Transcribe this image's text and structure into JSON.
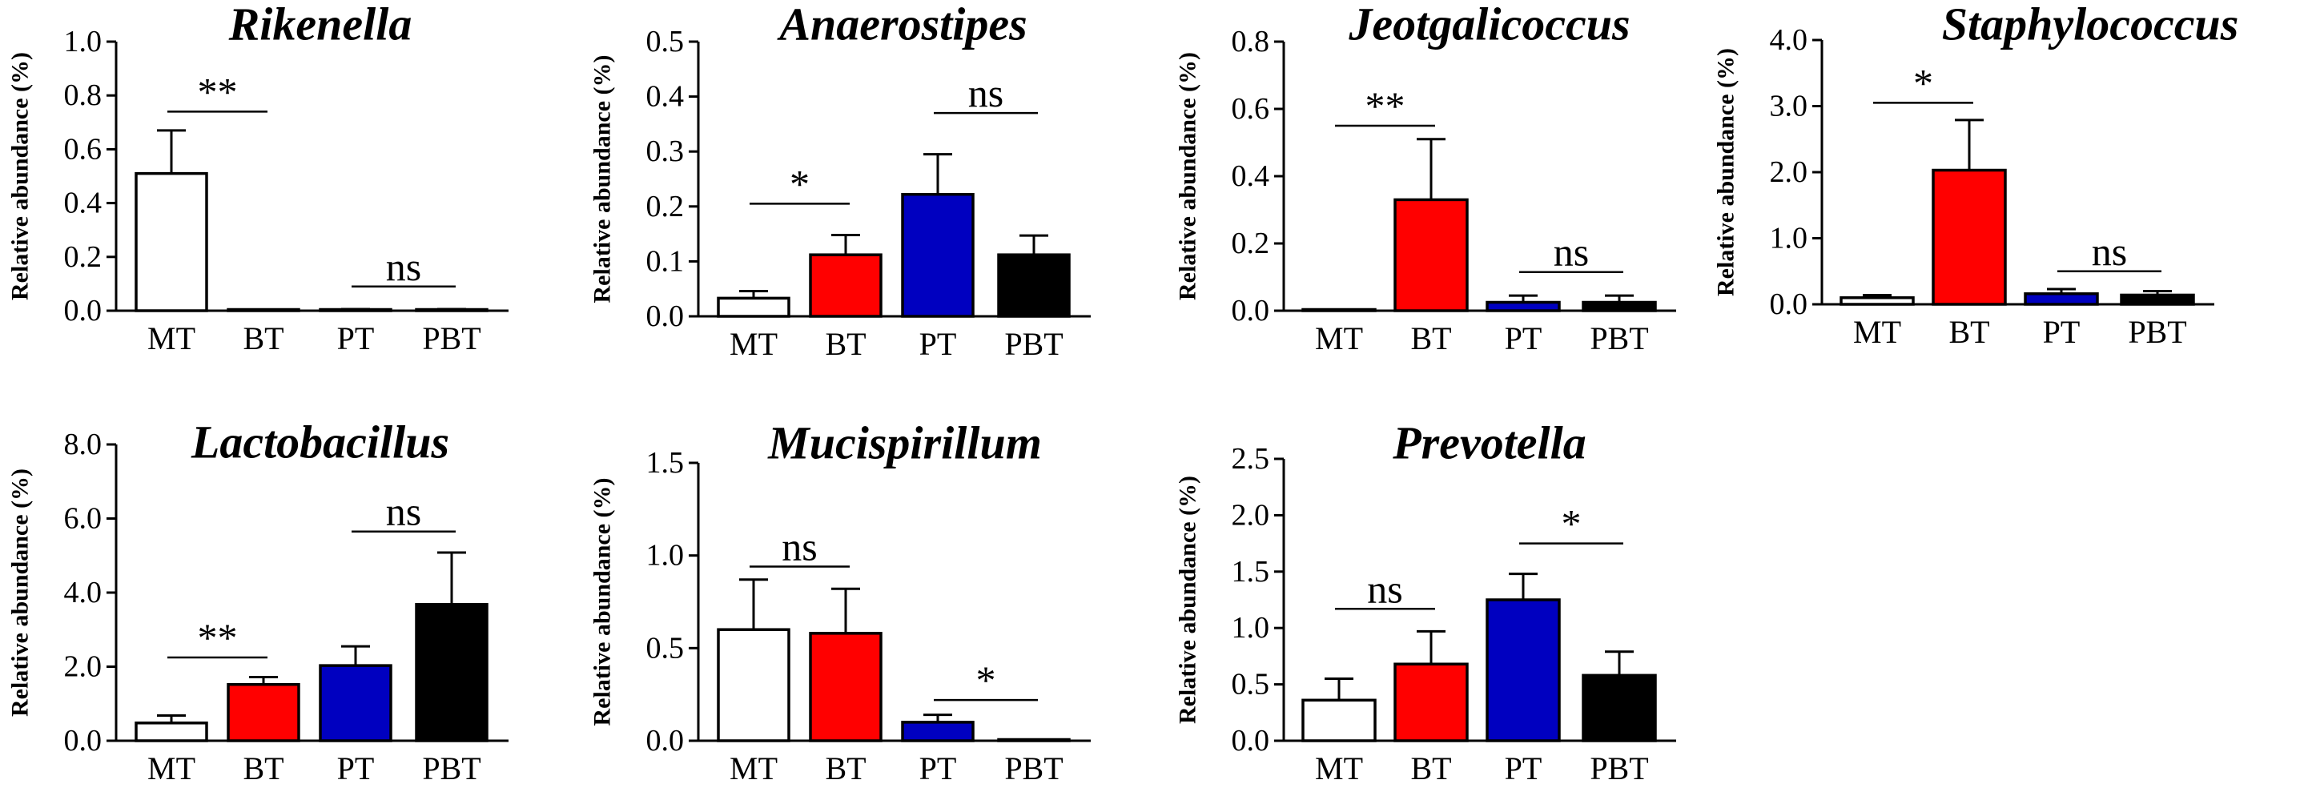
{
  "chart_data": [
    {
      "type": "bar",
      "title": "Rikenella",
      "ylabel": "Relative abundance (%)",
      "categories": [
        "MT",
        "BT",
        "PT",
        "PBT"
      ],
      "values": [
        0.51,
        0.0,
        0.004,
        0.004
      ],
      "errors": [
        0.16,
        0.0,
        0.002,
        0.002
      ],
      "colors": [
        "#ffffff",
        "#ff0000",
        "#0000c0",
        "#000000"
      ],
      "ylim": [
        0,
        1.0
      ],
      "yticks": [
        "0.0",
        "0.2",
        "0.4",
        "0.6",
        "0.8",
        "1.0"
      ],
      "significance": [
        {
          "from": 0,
          "to": 1,
          "y": 0.74,
          "label": "**"
        },
        {
          "from": 2,
          "to": 3,
          "y": 0.09,
          "label": "ns"
        }
      ]
    },
    {
      "type": "bar",
      "title": "Anaerostipes",
      "ylabel": "Relative abundance (%)",
      "categories": [
        "MT",
        "BT",
        "PT",
        "PBT"
      ],
      "values": [
        0.033,
        0.112,
        0.222,
        0.112
      ],
      "errors": [
        0.013,
        0.036,
        0.073,
        0.035
      ],
      "colors": [
        "#ffffff",
        "#ff0000",
        "#0000c0",
        "#000000"
      ],
      "ylim": [
        0,
        0.5
      ],
      "yticks": [
        "0.0",
        "0.1",
        "0.2",
        "0.3",
        "0.4",
        "0.5"
      ],
      "significance": [
        {
          "from": 0,
          "to": 1,
          "y": 0.205,
          "label": "*"
        },
        {
          "from": 2,
          "to": 3,
          "y": 0.37,
          "label": "ns"
        }
      ]
    },
    {
      "type": "bar",
      "title": "Jeotgalicoccus",
      "ylabel": "Relative abundance (%)",
      "categories": [
        "MT",
        "BT",
        "PT",
        "PBT"
      ],
      "values": [
        0.0,
        0.33,
        0.025,
        0.025
      ],
      "errors": [
        0.0,
        0.18,
        0.02,
        0.02
      ],
      "colors": [
        "#ffffff",
        "#ff0000",
        "#0000c0",
        "#000000"
      ],
      "ylim": [
        0,
        0.8
      ],
      "yticks": [
        "0.0",
        "0.2",
        "0.4",
        "0.6",
        "0.8"
      ],
      "significance": [
        {
          "from": 0,
          "to": 1,
          "y": 0.55,
          "label": "**"
        },
        {
          "from": 2,
          "to": 3,
          "y": 0.115,
          "label": "ns"
        }
      ]
    },
    {
      "type": "bar",
      "title": "Staphylococcus",
      "ylabel": "Relative abundance (%)",
      "categories": [
        "MT",
        "BT",
        "PT",
        "PBT"
      ],
      "values": [
        0.1,
        2.03,
        0.16,
        0.14
      ],
      "errors": [
        0.04,
        0.76,
        0.07,
        0.06
      ],
      "colors": [
        "#ffffff",
        "#ff0000",
        "#0000c0",
        "#000000"
      ],
      "ylim": [
        0,
        4.0
      ],
      "yticks": [
        "0.0",
        "1.0",
        "2.0",
        "3.0",
        "4.0"
      ],
      "significance": [
        {
          "from": 0,
          "to": 1,
          "y": 3.05,
          "label": "*"
        },
        {
          "from": 2,
          "to": 3,
          "y": 0.5,
          "label": "ns"
        }
      ]
    },
    {
      "type": "bar",
      "title": "Lactobacillus",
      "ylabel": "Relative abundance (%)",
      "categories": [
        "MT",
        "BT",
        "PT",
        "PBT"
      ],
      "values": [
        0.48,
        1.52,
        2.03,
        3.68
      ],
      "errors": [
        0.2,
        0.2,
        0.52,
        1.4
      ],
      "colors": [
        "#ffffff",
        "#ff0000",
        "#0000c0",
        "#000000"
      ],
      "ylim": [
        0,
        8.0
      ],
      "yticks": [
        "0.0",
        "2.0",
        "4.0",
        "6.0",
        "8.0"
      ],
      "significance": [
        {
          "from": 0,
          "to": 1,
          "y": 2.25,
          "label": "**"
        },
        {
          "from": 2,
          "to": 3,
          "y": 5.65,
          "label": "ns"
        }
      ]
    },
    {
      "type": "bar",
      "title": "Mucispirillum",
      "ylabel": "Relative abundance (%)",
      "categories": [
        "MT",
        "BT",
        "PT",
        "PBT"
      ],
      "values": [
        0.6,
        0.58,
        0.1,
        0.003
      ],
      "errors": [
        0.27,
        0.24,
        0.04,
        0.002
      ],
      "colors": [
        "#ffffff",
        "#ff0000",
        "#0000c0",
        "#000000"
      ],
      "ylim": [
        0,
        1.5
      ],
      "yticks": [
        "0.0",
        "0.5",
        "1.0",
        "1.5"
      ],
      "significance": [
        {
          "from": 0,
          "to": 1,
          "y": 0.94,
          "label": "ns"
        },
        {
          "from": 2,
          "to": 3,
          "y": 0.22,
          "label": "*"
        }
      ]
    },
    {
      "type": "bar",
      "title": "Prevotella",
      "ylabel": "Relative abundance (%)",
      "categories": [
        "MT",
        "BT",
        "PT",
        "PBT"
      ],
      "values": [
        0.36,
        0.68,
        1.25,
        0.58
      ],
      "errors": [
        0.19,
        0.29,
        0.23,
        0.21
      ],
      "colors": [
        "#ffffff",
        "#ff0000",
        "#0000c0",
        "#000000"
      ],
      "ylim": [
        0,
        2.5
      ],
      "yticks": [
        "0.0",
        "0.5",
        "1.0",
        "1.5",
        "2.0",
        "2.5"
      ],
      "significance": [
        {
          "from": 0,
          "to": 1,
          "y": 1.17,
          "label": "ns"
        },
        {
          "from": 2,
          "to": 3,
          "y": 1.75,
          "label": "*"
        }
      ]
    }
  ]
}
